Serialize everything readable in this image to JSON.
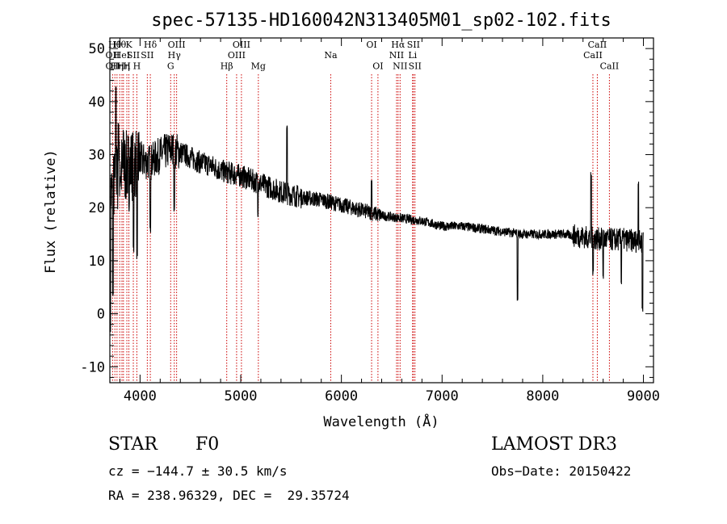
{
  "chart_data": {
    "type": "line",
    "title": "spec-57135-HD160042N313405M01_sp02-102.fits",
    "xlabel": "Wavelength (Å)",
    "ylabel": "Flux (relative)",
    "xlim": [
      3700,
      9100
    ],
    "ylim": [
      -13,
      52
    ],
    "xticks": [
      4000,
      5000,
      6000,
      7000,
      8000,
      9000
    ],
    "yticks": [
      -10,
      0,
      10,
      20,
      30,
      40,
      50
    ],
    "continuum": [
      [
        3700,
        22
      ],
      [
        3800,
        27
      ],
      [
        3900,
        28
      ],
      [
        4000,
        29
      ],
      [
        4100,
        28.5
      ],
      [
        4200,
        30
      ],
      [
        4300,
        31
      ],
      [
        4400,
        30.5
      ],
      [
        4500,
        29.5
      ],
      [
        4600,
        28.5
      ],
      [
        4700,
        28
      ],
      [
        4800,
        27
      ],
      [
        4900,
        26.5
      ],
      [
        5000,
        26
      ],
      [
        5200,
        24.5
      ],
      [
        5400,
        23
      ],
      [
        5600,
        22
      ],
      [
        5800,
        21.5
      ],
      [
        6000,
        20.5
      ],
      [
        6200,
        19.5
      ],
      [
        6400,
        18.5
      ],
      [
        6600,
        18
      ],
      [
        6800,
        17.5
      ],
      [
        7000,
        16.5
      ],
      [
        7200,
        16.5
      ],
      [
        7400,
        16
      ],
      [
        7600,
        15.5
      ],
      [
        7800,
        15
      ],
      [
        8000,
        15
      ],
      [
        8200,
        15
      ],
      [
        8400,
        14.5
      ],
      [
        8600,
        14
      ],
      [
        8800,
        14
      ],
      [
        9000,
        13.5
      ]
    ],
    "features": [
      {
        "x": 3705,
        "y": -3
      },
      {
        "x": 3730,
        "y": 4
      },
      {
        "x": 3760,
        "y": 43
      },
      {
        "x": 3785,
        "y": 36
      },
      {
        "x": 3835,
        "y": 34
      },
      {
        "x": 3890,
        "y": 20
      },
      {
        "x": 3935,
        "y": 12
      },
      {
        "x": 3970,
        "y": 11
      },
      {
        "x": 4102,
        "y": 16
      },
      {
        "x": 4340,
        "y": 20
      },
      {
        "x": 5170,
        "y": 19
      },
      {
        "x": 5460,
        "y": 35
      },
      {
        "x": 6300,
        "y": 25
      },
      {
        "x": 7750,
        "y": 3
      },
      {
        "x": 8480,
        "y": 26
      },
      {
        "x": 8500,
        "y": 8
      },
      {
        "x": 8600,
        "y": 7
      },
      {
        "x": 8780,
        "y": 6
      },
      {
        "x": 8950,
        "y": 25
      },
      {
        "x": 8990,
        "y": 1
      }
    ],
    "lines": [
      {
        "x": 3727,
        "label": "OII",
        "row": 2
      },
      {
        "x": 3727,
        "label": "OII",
        "row": 1
      },
      {
        "x": 3750,
        "label": "Hθ",
        "row": 0
      },
      {
        "x": 3771,
        "label": "Hη",
        "row": 2
      },
      {
        "x": 3798,
        "label": "Hθ",
        "row": 0
      },
      {
        "x": 3820,
        "label": "HeI",
        "row": 1
      },
      {
        "x": 3835,
        "label": "Hη",
        "row": 2
      },
      {
        "x": 3869,
        "label": "H",
        "row": 2
      },
      {
        "x": 3889,
        "label": "K",
        "row": 0
      },
      {
        "x": 3933,
        "label": "SII",
        "row": 1
      },
      {
        "x": 3968,
        "label": "H",
        "row": 2
      },
      {
        "x": 4072,
        "label": "SII",
        "row": 1
      },
      {
        "x": 4102,
        "label": "Hδ",
        "row": 0
      },
      {
        "x": 4304,
        "label": "G",
        "row": 2
      },
      {
        "x": 4340,
        "label": "Hγ",
        "row": 1
      },
      {
        "x": 4363,
        "label": "OIII",
        "row": 0
      },
      {
        "x": 4861,
        "label": "Hβ",
        "row": 2
      },
      {
        "x": 4959,
        "label": "OIII",
        "row": 1
      },
      {
        "x": 5007,
        "label": "OIII",
        "row": 0
      },
      {
        "x": 5175,
        "label": "Mg",
        "row": 2
      },
      {
        "x": 5894,
        "label": "Na",
        "row": 1
      },
      {
        "x": 6300,
        "label": "OI",
        "row": 0
      },
      {
        "x": 6363,
        "label": "OI",
        "row": 2
      },
      {
        "x": 6548,
        "label": "NII",
        "row": 1
      },
      {
        "x": 6563,
        "label": "Hα",
        "row": 0
      },
      {
        "x": 6583,
        "label": "NII",
        "row": 2
      },
      {
        "x": 6707,
        "label": "Li",
        "row": 1
      },
      {
        "x": 6716,
        "label": "SII",
        "row": 0
      },
      {
        "x": 6731,
        "label": "SII",
        "row": 2
      },
      {
        "x": 8498,
        "label": "CaII",
        "row": 1
      },
      {
        "x": 8542,
        "label": "CaII",
        "row": 0
      },
      {
        "x": 8662,
        "label": "CaII",
        "row": 2
      }
    ],
    "label_rows": [
      52,
      50,
      48
    ]
  },
  "info": {
    "object_class": "STAR",
    "subclass": "F0",
    "survey": "LAMOST DR3",
    "cz": "cz = −144.7 ± 30.5 km/s",
    "obs_date": "Obs−Date: 20150422",
    "coords": "RA = 238.96329, DEC =  29.35724"
  },
  "colors": {
    "axis": "#000000",
    "spectrum": "#000000",
    "line_marker": "#cc0000",
    "background": "#ffffff"
  }
}
